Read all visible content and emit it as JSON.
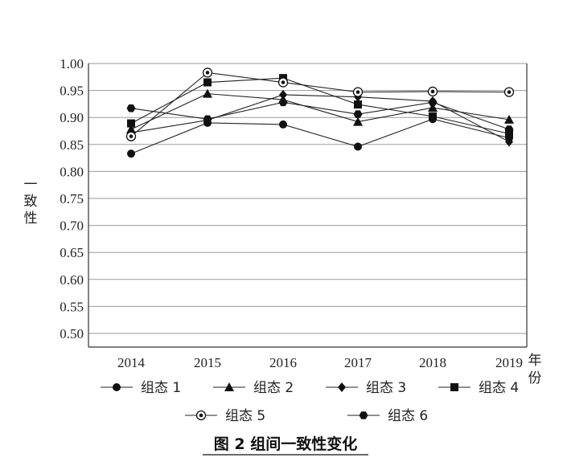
{
  "chart_data": {
    "type": "line",
    "title": "图 2  组间一致性变化",
    "ylabel": "一致性",
    "xlabel": "年份",
    "ylim": [
      0.5,
      1.0
    ],
    "yticks": [
      "0.50",
      "0.55",
      "0.60",
      "0.65",
      "0.70",
      "0.75",
      "0.80",
      "0.85",
      "0.90",
      "0.95",
      "1.00"
    ],
    "categories": [
      "2014",
      "2015",
      "2016",
      "2017",
      "2018",
      "2019"
    ],
    "grid": true,
    "legend_position": "bottom",
    "series": [
      {
        "name": "组态 1",
        "marker": "circle",
        "values": [
          0.833,
          0.89,
          0.887,
          0.846,
          0.897,
          0.862
        ]
      },
      {
        "name": "组态 2",
        "marker": "triangle",
        "values": [
          0.878,
          0.944,
          0.933,
          0.892,
          0.918,
          0.896
        ]
      },
      {
        "name": "组态 3",
        "marker": "diamond",
        "values": [
          0.872,
          0.895,
          0.942,
          0.938,
          0.93,
          0.855
        ]
      },
      {
        "name": "组态 4",
        "marker": "square",
        "values": [
          0.889,
          0.965,
          0.973,
          0.924,
          0.902,
          0.87
        ]
      },
      {
        "name": "组态 5",
        "marker": "ring",
        "values": [
          0.865,
          0.983,
          0.965,
          0.947,
          0.948,
          0.947
        ]
      },
      {
        "name": "组态 6",
        "marker": "hexagon",
        "values": [
          0.917,
          0.897,
          0.928,
          0.906,
          0.928,
          0.878
        ]
      }
    ]
  }
}
